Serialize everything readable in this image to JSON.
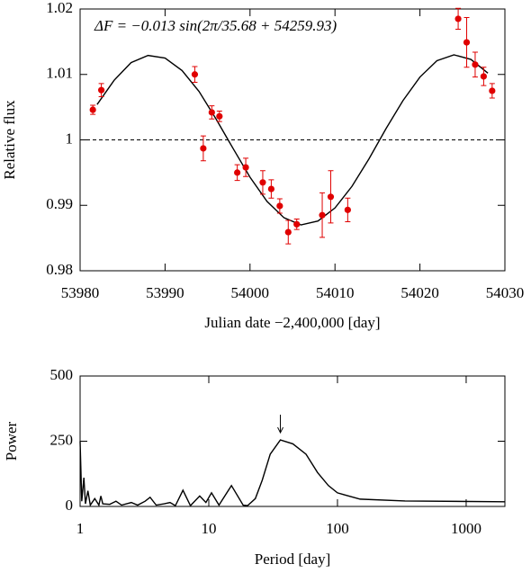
{
  "chart_data": [
    {
      "type": "scatter",
      "annotation": "ΔF = −0.013 sin(2π/35.68 + 54259.93)",
      "xlabel": "Julian date −2,400,000 [day]",
      "ylabel": "Relative flux",
      "xlim": [
        53980,
        54030
      ],
      "xticks": [
        53980,
        53990,
        54000,
        54010,
        54020,
        54030
      ],
      "ylim": [
        0.98,
        1.02
      ],
      "yticks": [
        0.98,
        0.99,
        1,
        1.01,
        1.02
      ],
      "reference_line": 1,
      "points": {
        "color": "#e00000",
        "x": [
          53981.5,
          53982.5,
          53993.5,
          53994.5,
          53995.5,
          53996.4,
          53998.5,
          53999.5,
          54001.5,
          54002.5,
          54003.5,
          54004.5,
          54005.5,
          54008.5,
          54009.5,
          54011.5,
          54024.5,
          54025.5,
          54026.5,
          54027.5,
          54028.5
        ],
        "values": [
          1.0046,
          1.0076,
          1.01,
          0.9987,
          1.0042,
          1.0036,
          0.995,
          0.9958,
          0.9935,
          0.9925,
          0.9899,
          0.9859,
          0.9871,
          0.9885,
          0.9913,
          0.9893,
          1.0185,
          1.0149,
          1.0115,
          1.0097,
          1.0075
        ],
        "errors": [
          0.0007,
          0.001,
          0.0012,
          0.0019,
          0.001,
          0.0008,
          0.0012,
          0.0014,
          0.0018,
          0.0014,
          0.0011,
          0.0018,
          0.0008,
          0.0034,
          0.004,
          0.0018,
          0.0016,
          0.0038,
          0.0019,
          0.0014,
          0.0011
        ]
      },
      "fit": {
        "color": "#000000",
        "x": [
          53982,
          53984,
          53986,
          53988,
          53990,
          53992,
          53994,
          53996,
          53998,
          54000,
          54002,
          54004,
          54006,
          54008,
          54010,
          54012,
          54014,
          54016,
          54018,
          54020,
          54022,
          54024,
          54026,
          54028
        ],
        "values": [
          1.0054,
          1.0091,
          1.0118,
          1.0129,
          1.0125,
          1.0106,
          1.0074,
          1.0032,
          0.9987,
          0.9943,
          0.9906,
          0.9881,
          0.987,
          0.9876,
          0.9896,
          0.9929,
          0.9971,
          1.0017,
          1.006,
          1.0096,
          1.0121,
          1.013,
          1.0123,
          1.0102
        ]
      }
    },
    {
      "type": "line",
      "xlabel": "Period [day]",
      "ylabel": "Power",
      "xscale": "log",
      "xlim": [
        1,
        2000
      ],
      "xticks": [
        1,
        10,
        100,
        1000
      ],
      "ylim": [
        0,
        500
      ],
      "yticks": [
        0,
        250,
        500
      ],
      "color": "#000000",
      "x": [
        1.0,
        1.03,
        1.07,
        1.1,
        1.15,
        1.2,
        1.3,
        1.4,
        1.45,
        1.5,
        1.7,
        1.9,
        2.1,
        2.5,
        2.8,
        3.2,
        3.5,
        3.9,
        4.5,
        5,
        5.5,
        6.3,
        7.2,
        8.5,
        9.5,
        10.5,
        12,
        15,
        18.5,
        20,
        23,
        26,
        30,
        36,
        45,
        57,
        70,
        85,
        100,
        150,
        335,
        2000
      ],
      "values": [
        250,
        20,
        110,
        10,
        60,
        5,
        30,
        5,
        40,
        10,
        8,
        20,
        5,
        15,
        5,
        20,
        35,
        5,
        10,
        15,
        3,
        62,
        3,
        40,
        15,
        52,
        5,
        80,
        5,
        3,
        30,
        100,
        200,
        255,
        240,
        200,
        130,
        80,
        52,
        28,
        21,
        18
      ]
    }
  ]
}
